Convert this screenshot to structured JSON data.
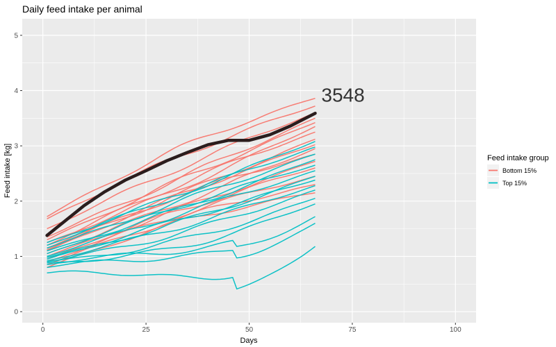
{
  "chart_data": {
    "type": "line",
    "title": "Daily feed intake per animal",
    "xlabel": "Days",
    "ylabel": "Feed intake [kg]",
    "xlim": [
      -5,
      105
    ],
    "ylim": [
      -0.2,
      5.3
    ],
    "xticks": [
      0,
      25,
      50,
      75,
      100
    ],
    "yticks": [
      0,
      1,
      2,
      3,
      4,
      5
    ],
    "grid": true,
    "legend": {
      "title": "Feed intake group",
      "position": "right",
      "entries": [
        {
          "name": "Bottom 15%",
          "color": "#F8766D"
        },
        {
          "name": "Top 15%",
          "color": "#00BFC4"
        }
      ]
    },
    "annotation": {
      "text": "3548",
      "x": 67.5,
      "y": 3.8
    },
    "highlight": {
      "name": "3548",
      "color": "#2b1d1d",
      "x": [
        1,
        5,
        10,
        15,
        20,
        25,
        30,
        35,
        40,
        45,
        50,
        55,
        60,
        66
      ],
      "y": [
        1.38,
        1.62,
        1.92,
        2.17,
        2.38,
        2.55,
        2.73,
        2.88,
        3.02,
        3.1,
        3.1,
        3.2,
        3.36,
        3.59
      ]
    },
    "series": [
      {
        "group": "Bottom 15%",
        "start": 1.72,
        "end": 3.86,
        "curve": 0.3
      },
      {
        "group": "Bottom 15%",
        "start": 1.68,
        "end": 3.72,
        "curve": 0.2
      },
      {
        "group": "Bottom 15%",
        "start": 1.5,
        "end": 3.6,
        "curve": 0.1
      },
      {
        "group": "Bottom 15%",
        "start": 1.35,
        "end": 3.5,
        "curve": 0.0
      },
      {
        "group": "Bottom 15%",
        "start": 1.3,
        "end": 3.42,
        "curve": 0.05
      },
      {
        "group": "Bottom 15%",
        "start": 1.25,
        "end": 3.35,
        "curve": -0.1
      },
      {
        "group": "Bottom 15%",
        "start": 1.2,
        "end": 3.25,
        "curve": 0.15
      },
      {
        "group": "Bottom 15%",
        "start": 1.15,
        "end": 3.12,
        "curve": 0.0
      },
      {
        "group": "Bottom 15%",
        "start": 1.1,
        "end": 3.02,
        "curve": 0.1
      },
      {
        "group": "Bottom 15%",
        "start": 1.05,
        "end": 2.95,
        "curve": -0.05
      },
      {
        "group": "Bottom 15%",
        "start": 1.12,
        "end": 2.85,
        "curve": 0.2
      },
      {
        "group": "Bottom 15%",
        "start": 1.0,
        "end": 2.72,
        "curve": 0.0
      },
      {
        "group": "Bottom 15%",
        "start": 0.95,
        "end": 2.6,
        "curve": 0.1
      },
      {
        "group": "Bottom 15%",
        "start": 0.9,
        "end": 2.45,
        "curve": 0.15
      },
      {
        "group": "Bottom 15%",
        "start": 0.85,
        "end": 2.3,
        "curve": 0.2
      },
      {
        "group": "Bottom 15%",
        "start": 0.8,
        "end": 2.15,
        "curve": 0.25
      },
      {
        "group": "Top 15%",
        "start": 1.25,
        "end": 3.08,
        "curve": -0.05
      },
      {
        "group": "Top 15%",
        "start": 1.2,
        "end": 2.98,
        "curve": 0.05
      },
      {
        "group": "Top 15%",
        "start": 1.15,
        "end": 2.85,
        "curve": 0.0
      },
      {
        "group": "Top 15%",
        "start": 1.1,
        "end": 2.75,
        "curve": -0.1
      },
      {
        "group": "Top 15%",
        "start": 1.05,
        "end": 2.65,
        "curve": 0.1
      },
      {
        "group": "Top 15%",
        "start": 1.0,
        "end": 2.55,
        "curve": 0.0
      },
      {
        "group": "Top 15%",
        "start": 0.98,
        "end": 2.45,
        "curve": -0.15
      },
      {
        "group": "Top 15%",
        "start": 0.95,
        "end": 2.38,
        "curve": 0.0
      },
      {
        "group": "Top 15%",
        "start": 0.92,
        "end": 2.28,
        "curve": -0.1
      },
      {
        "group": "Top 15%",
        "start": 0.9,
        "end": 2.2,
        "curve": -0.2
      },
      {
        "group": "Top 15%",
        "start": 0.9,
        "end": 2.05,
        "curve": -0.3
      },
      {
        "group": "Top 15%",
        "start": 0.88,
        "end": 1.95,
        "curve": -0.4
      },
      {
        "group": "Top 15%",
        "start": 0.85,
        "end": 1.72,
        "curve": -0.6
      },
      {
        "group": "Top 15%",
        "start": 0.8,
        "end": 1.6,
        "curve": -0.7
      },
      {
        "group": "Top 15%",
        "start": 0.7,
        "end": 1.18,
        "curve": -1.1
      }
    ]
  }
}
